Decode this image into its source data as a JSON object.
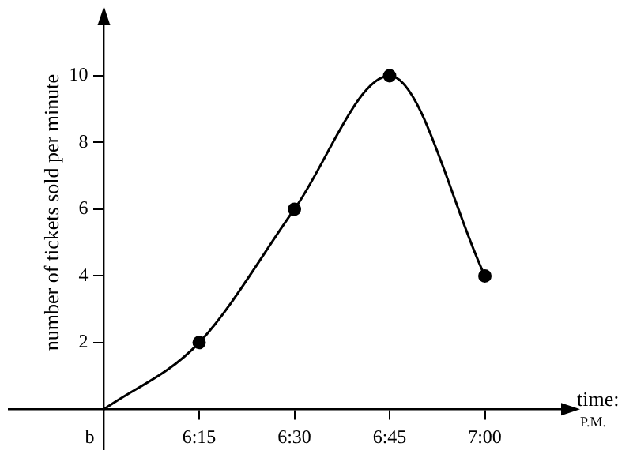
{
  "chart_data": {
    "type": "line",
    "xlabel": "time: P.M.",
    "ylabel": "number of tickets sold per minute",
    "categories": [
      "b",
      "6:15",
      "6:30",
      "6:45",
      "7:00"
    ],
    "ylim": [
      -1.2,
      11.8
    ],
    "yticks": [
      2,
      4,
      6,
      8,
      10
    ],
    "grid": false,
    "legend": false,
    "series": [
      {
        "color": "#000000",
        "marker": "none",
        "line_style": "solid",
        "values": [
          0,
          2,
          6,
          10,
          4
        ]
      },
      {
        "type": "scatter",
        "color": "#000000",
        "marker": "circle",
        "values": [
          null,
          2,
          6,
          10,
          4
        ]
      }
    ]
  }
}
